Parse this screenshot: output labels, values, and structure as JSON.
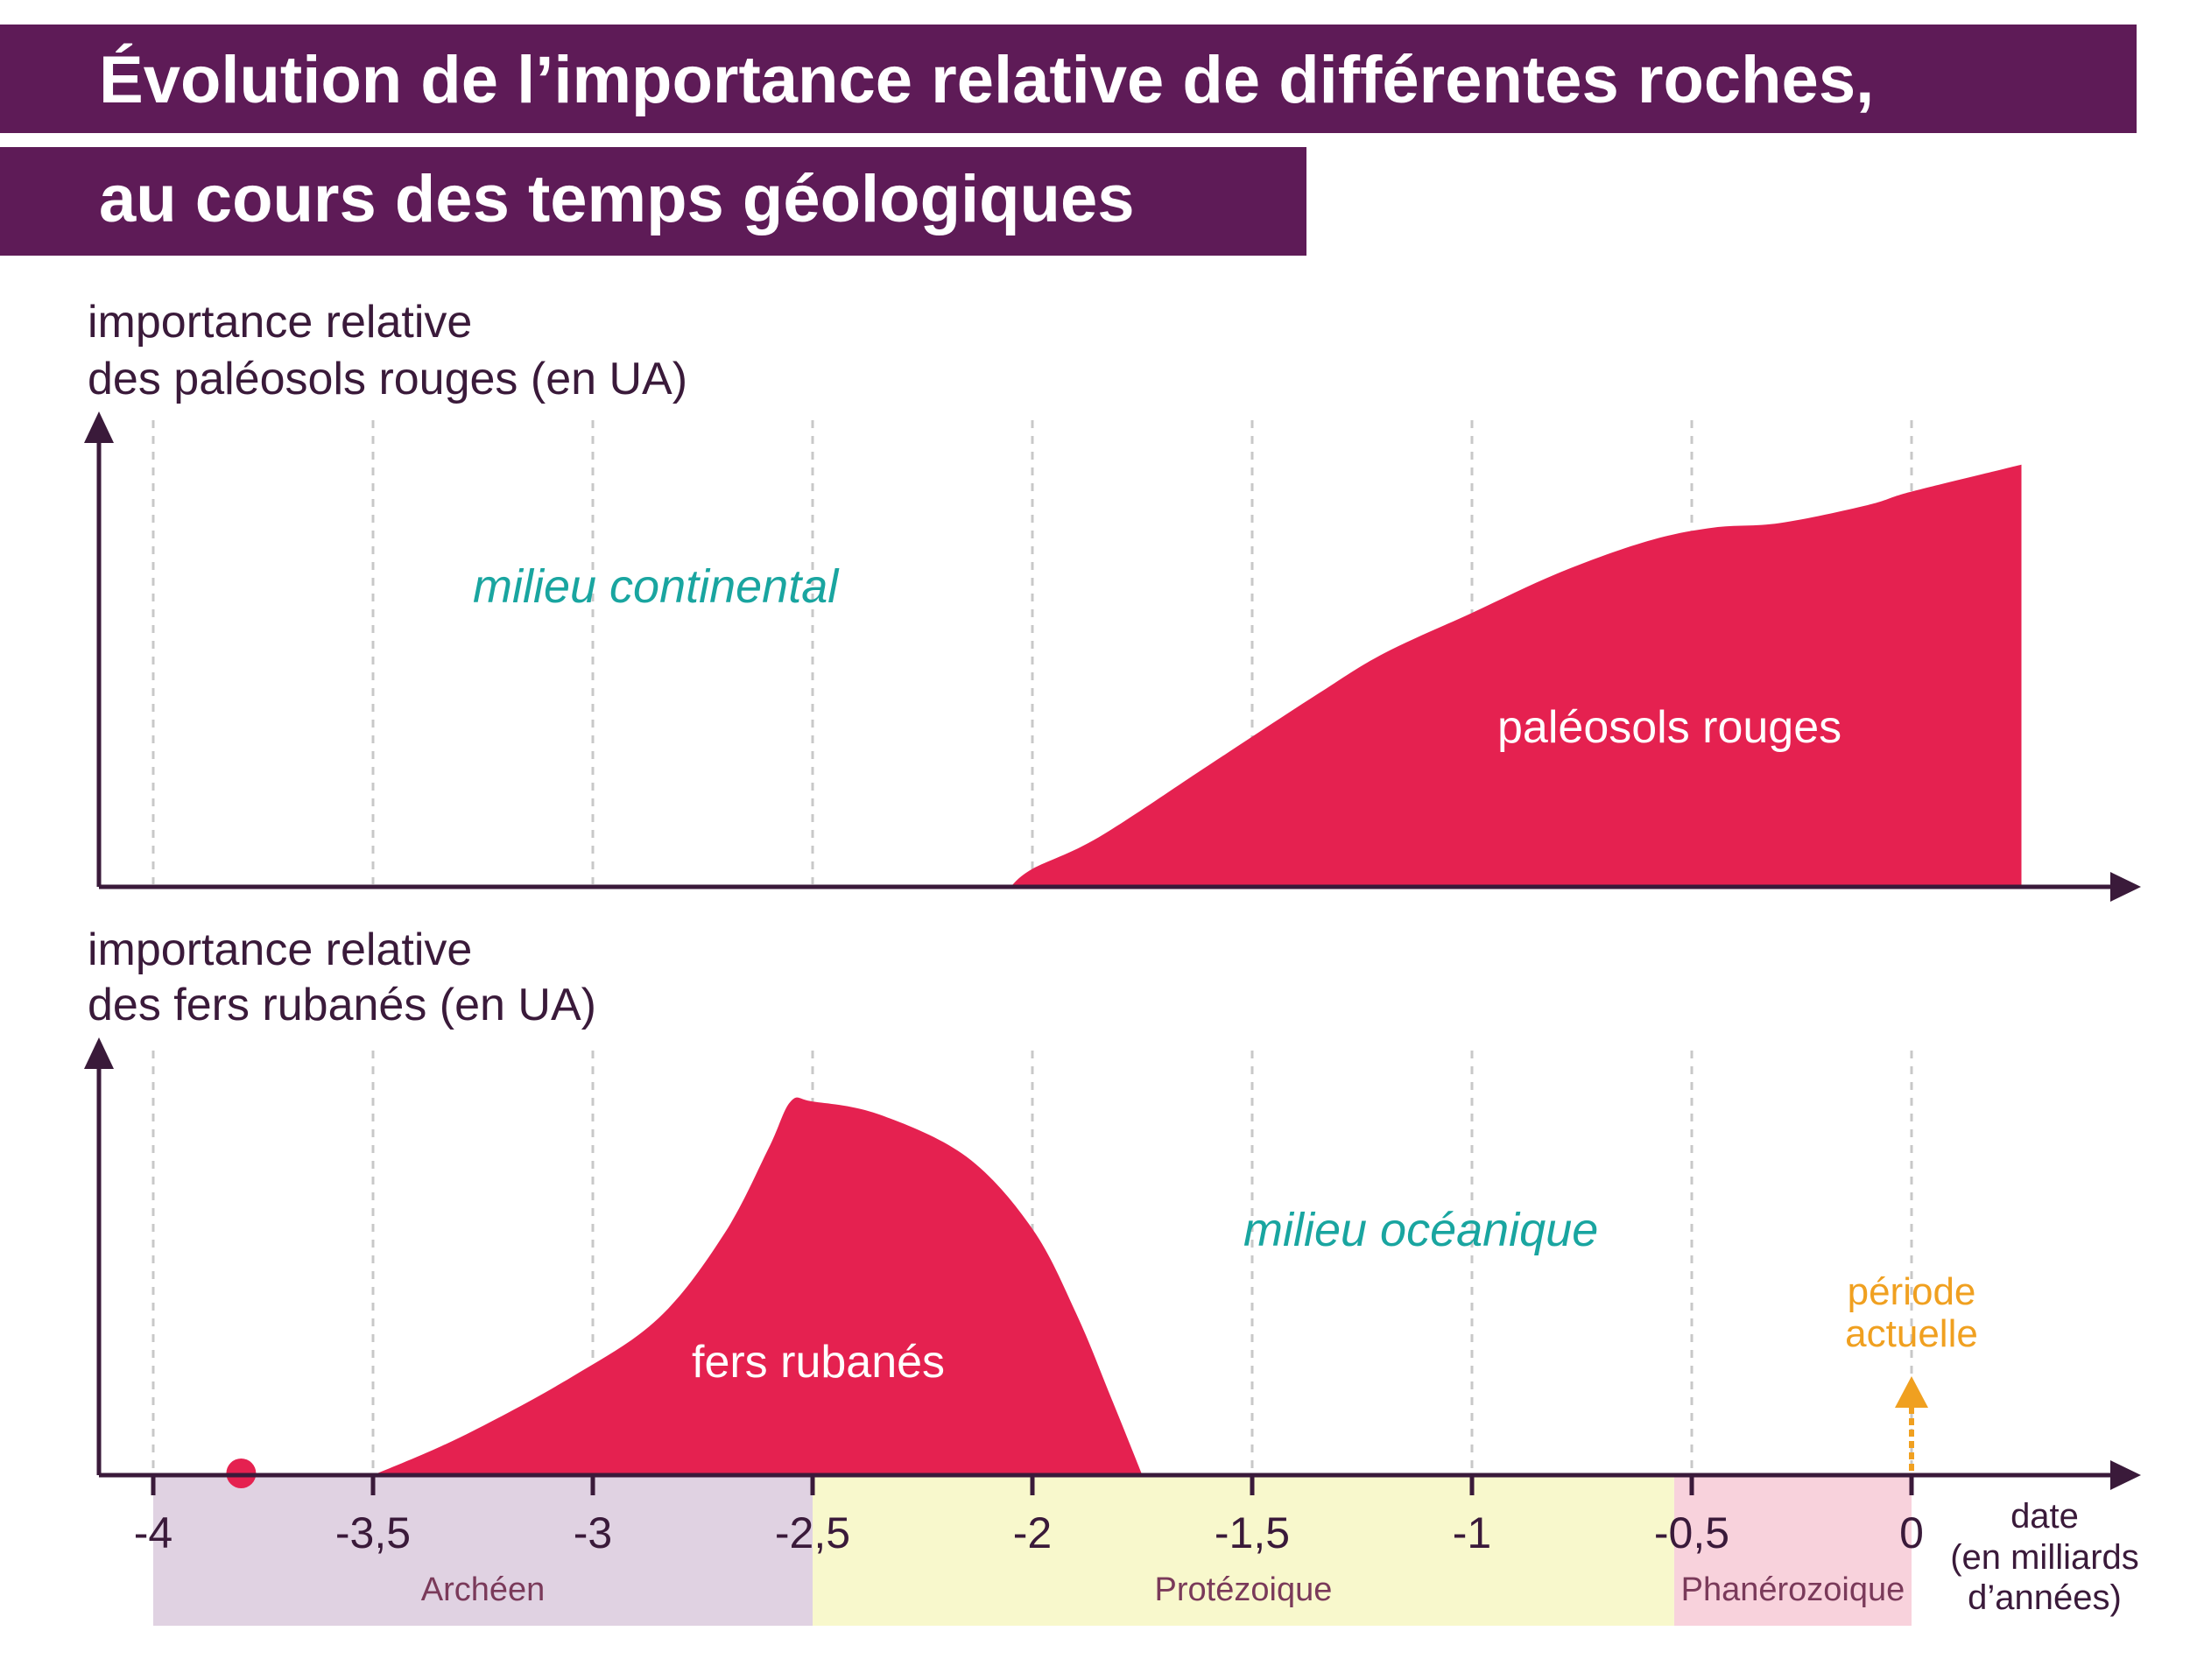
{
  "title_line1": "Évolution de l’importance relative de différentes roches,",
  "title_line2": "au cours des temps géologiques",
  "colors": {
    "title_bg": "#5e1b57",
    "area": "#e52150",
    "axis": "#3a1a3a",
    "grid": "#c8c8c8",
    "env_text": "#19a5a0",
    "now_marker": "#f0a020",
    "archean_bg": "#e0d2e2",
    "proterozoic_bg": "#f8f8cc",
    "phanerozoic_bg": "#f8d2dc"
  },
  "chart_data": [
    {
      "type": "area",
      "ylabel_line1": "importance relative",
      "ylabel_line2": "des paléosols rouges (en UA)",
      "series_label": "paléosols rouges",
      "environment_label": "milieu continental",
      "xlim": [
        -4.2,
        0.55
      ],
      "ylim": [
        0,
        100
      ],
      "x": [
        -2.05,
        -2.0,
        -1.85,
        -1.6,
        -1.35,
        -1.2,
        -1.0,
        -0.8,
        -0.6,
        -0.45,
        -0.3,
        -0.1,
        0.0,
        0.25
      ],
      "y": [
        0,
        4,
        11,
        27,
        43,
        52,
        61,
        70,
        77,
        80,
        81,
        85,
        88,
        94
      ]
    },
    {
      "type": "area",
      "ylabel_line1": "importance relative",
      "ylabel_line2": "des fers rubanés (en UA)",
      "series_label": "fers rubanés",
      "environment_label": "milieu océanique",
      "now_label_line1": "période",
      "now_label_line2": "actuelle",
      "xlim": [
        -4.2,
        0.55
      ],
      "ylim": [
        0,
        100
      ],
      "x": [
        -3.5,
        -3.3,
        -3.05,
        -2.85,
        -2.7,
        -2.6,
        -2.55,
        -2.5,
        -2.35,
        -2.15,
        -2.0,
        -1.9,
        -1.82,
        -1.75
      ],
      "y": [
        0,
        9,
        23,
        37,
        57,
        77,
        88,
        88,
        85,
        75,
        58,
        38,
        18,
        0
      ],
      "isolated_point": {
        "x": -3.8,
        "y": 0
      }
    }
  ],
  "x_axis": {
    "ticks": [
      -4,
      -3.5,
      -3,
      -2.5,
      -2,
      -1.5,
      -1,
      -0.5,
      0
    ],
    "tick_labels": [
      "-4",
      "-3,5",
      "-3",
      "-2,5",
      "-2",
      "-1,5",
      "-1",
      "-0,5",
      "0"
    ],
    "unit_line1": "date",
    "unit_line2": "(en milliards",
    "unit_line3": "d’années)"
  },
  "eras": [
    {
      "name": "Archéen",
      "from": -4,
      "to": -2.5,
      "color": "#e0d2e2"
    },
    {
      "name": "Protézoique",
      "from": -2.5,
      "to": -0.54,
      "color": "#f8f8cc"
    },
    {
      "name": "Phanérozoique",
      "from": -0.54,
      "to": 0,
      "color": "#f8d2dc"
    }
  ]
}
